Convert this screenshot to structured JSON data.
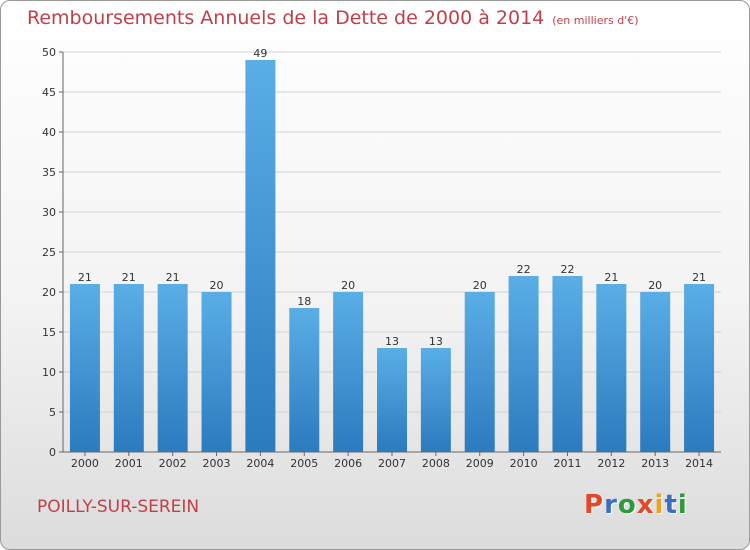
{
  "header": {
    "title": "Remboursements Annuels de la Dette de 2000 à 2014",
    "unit": "(en milliers d'€)"
  },
  "footer": {
    "commune": "POILLY-SUR-SEREIN",
    "logo": "Proxiti"
  },
  "colors": {
    "bar_light": "#5aaee6",
    "bar_dark": "#2b7bbf",
    "title": "#c0404a",
    "logo_letters": [
      "#e2482a",
      "#3a6fbf",
      "#2f9a3a",
      "#e2482a",
      "#f0a21c",
      "#3a6fbf",
      "#2f9a3a"
    ]
  },
  "chart_data": {
    "type": "bar",
    "title": "Remboursements Annuels de la Dette de 2000 à 2014",
    "subtitle": "(en milliers d'€)",
    "categories": [
      "2000",
      "2001",
      "2002",
      "2003",
      "2004",
      "2005",
      "2006",
      "2007",
      "2008",
      "2009",
      "2010",
      "2011",
      "2012",
      "2013",
      "2014"
    ],
    "values": [
      21,
      21,
      21,
      20,
      49,
      18,
      20,
      13,
      13,
      20,
      22,
      22,
      21,
      20,
      21
    ],
    "ylim": [
      0,
      50
    ],
    "yticks": [
      0,
      5,
      10,
      15,
      20,
      25,
      30,
      35,
      40,
      45,
      50
    ],
    "grid": true,
    "data_labels": true
  }
}
